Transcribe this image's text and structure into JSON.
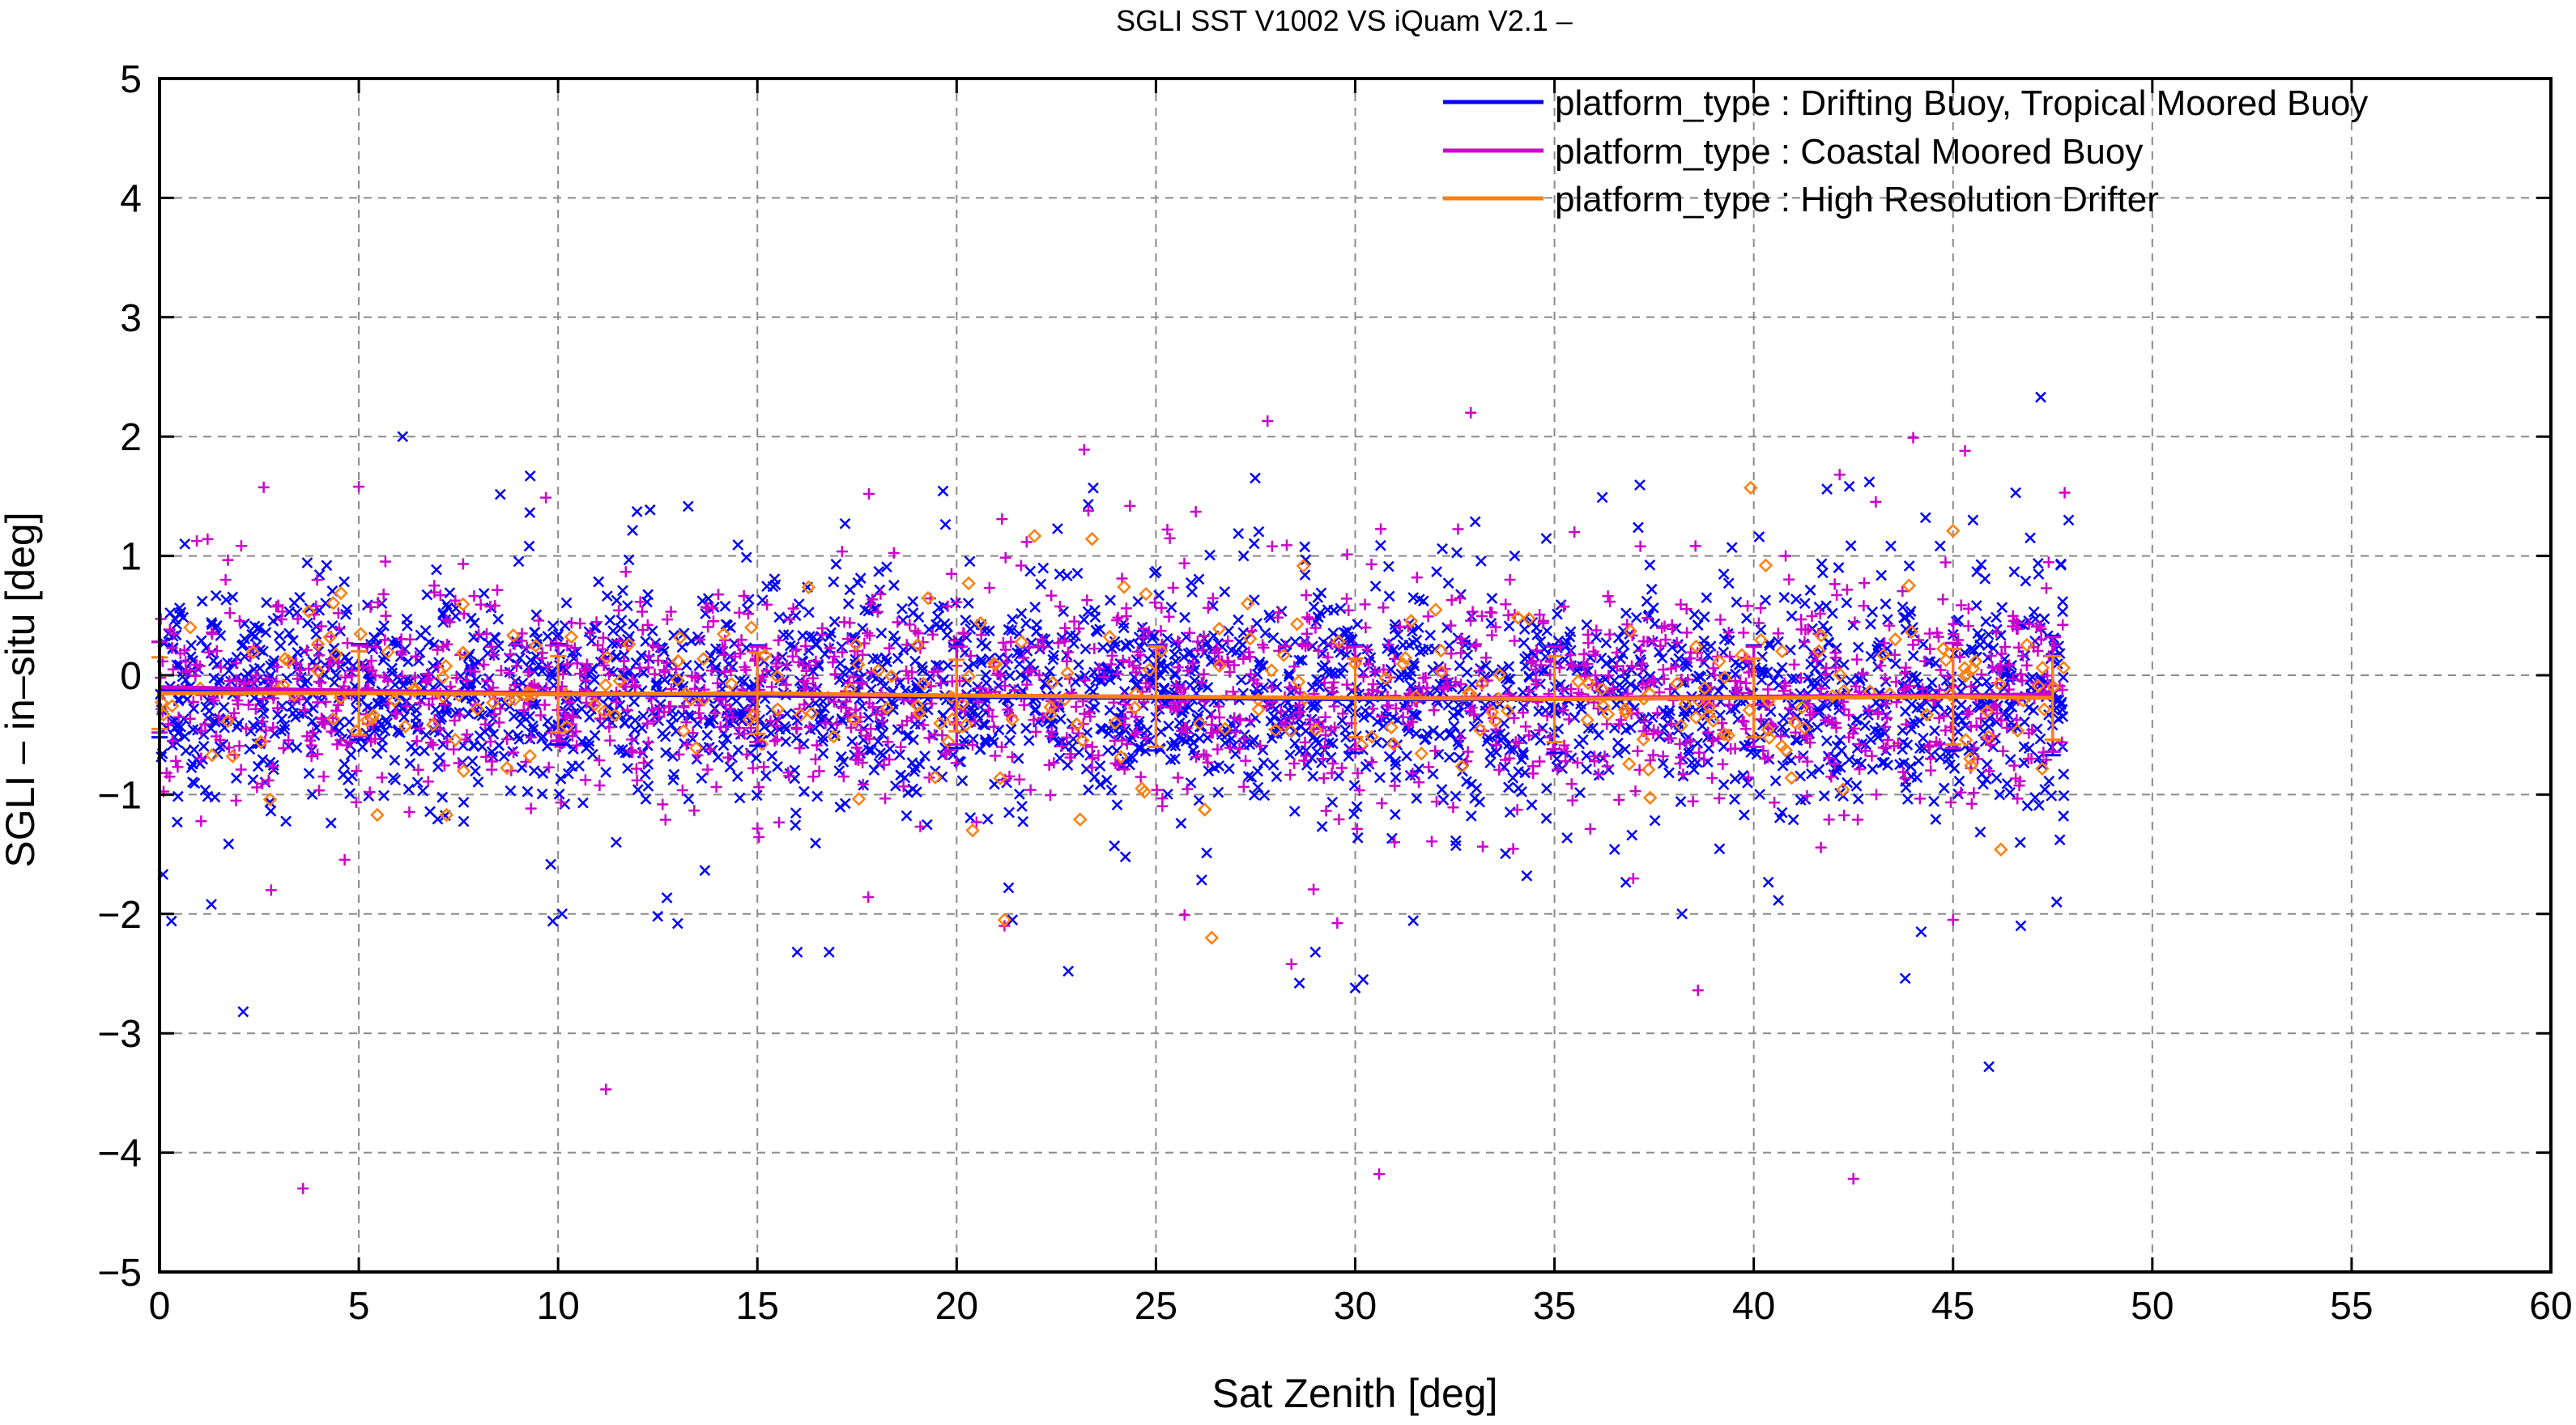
{
  "colors": {
    "drifting": "#0000ff",
    "coastal": "#cc00cc",
    "hrd": "#ff7f0e",
    "grid": "#8a8a8a",
    "axis": "#000000"
  },
  "chart_data": {
    "type": "scatter",
    "title": "SGLI SST V1002 VS iQuam V2.1  –",
    "xlabel": "Sat Zenith [deg]",
    "ylabel": "SGLI – in–situ [deg]",
    "xlim": [
      0,
      60
    ],
    "ylim": [
      -5,
      5
    ],
    "grid": true,
    "legend_position": "top-right",
    "x_ticks": [
      "0",
      "5",
      "10",
      "15",
      "20",
      "25",
      "30",
      "35",
      "40",
      "45",
      "50",
      "55",
      "60"
    ],
    "y_ticks": [
      "5",
      "4",
      "3",
      "2",
      "1",
      "0",
      "−1",
      "−2",
      "−3",
      "−4",
      "−5"
    ],
    "series": [
      {
        "name": "platform_type : Drifting Buoy, Tropical Moored Buoy",
        "marker": "x",
        "bin_centers": [
          0,
          5,
          10,
          15,
          20,
          25,
          30,
          35,
          40,
          45,
          47.5
        ],
        "mean": [
          -0.12,
          -0.14,
          -0.16,
          -0.17,
          -0.18,
          -0.19,
          -0.2,
          -0.2,
          -0.19,
          -0.18,
          -0.17
        ],
        "std": [
          0.4,
          0.4,
          0.42,
          0.42,
          0.43,
          0.44,
          0.45,
          0.45,
          0.44,
          0.45,
          0.5
        ],
        "scatter_range_x": [
          0,
          47.8
        ],
        "outliers": [
          [
            0.3,
            -2.06
          ],
          [
            1.3,
            -1.92
          ],
          [
            2.1,
            -2.82
          ],
          [
            6.1,
            2.0
          ],
          [
            9.3,
            1.67
          ],
          [
            10.1,
            -2.0
          ],
          [
            12.5,
            -2.02
          ],
          [
            13.0,
            -2.08
          ],
          [
            16.0,
            -2.32
          ],
          [
            16.8,
            -2.32
          ],
          [
            17.2,
            1.27
          ],
          [
            21.4,
            -2.05
          ],
          [
            22.8,
            -2.48
          ],
          [
            27.2,
            1.0
          ],
          [
            28.6,
            -2.58
          ],
          [
            29.0,
            -2.32
          ],
          [
            30.0,
            -2.62
          ],
          [
            30.2,
            -2.55
          ],
          [
            42.9,
            1.62
          ],
          [
            43.8,
            -2.54
          ],
          [
            44.2,
            -2.15
          ],
          [
            45.5,
            1.3
          ],
          [
            45.9,
            -3.28
          ],
          [
            46.7,
            -2.1
          ],
          [
            47.2,
            2.33
          ],
          [
            47.6,
            -1.9
          ],
          [
            47.9,
            1.3
          ],
          [
            36.2,
            1.49
          ],
          [
            38.2,
            -2.0
          ],
          [
            34.0,
            1.0
          ]
        ]
      },
      {
        "name": "platform_type : Coastal Moored Buoy",
        "marker": "+",
        "bin_centers": [
          0,
          5,
          10,
          15,
          20,
          25,
          30,
          35,
          40,
          45,
          47.5
        ],
        "mean": [
          -0.1,
          -0.13,
          -0.15,
          -0.16,
          -0.17,
          -0.18,
          -0.19,
          -0.19,
          -0.18,
          -0.17,
          -0.16
        ],
        "std": [
          0.38,
          0.38,
          0.4,
          0.4,
          0.41,
          0.42,
          0.43,
          0.43,
          0.42,
          0.44,
          0.48
        ],
        "scatter_range_x": [
          0,
          47.8
        ],
        "outliers": [
          [
            3.6,
            -4.3
          ],
          [
            11.2,
            -3.47
          ],
          [
            30.6,
            -4.18
          ],
          [
            38.6,
            -2.64
          ],
          [
            42.5,
            -4.22
          ],
          [
            23.2,
            1.89
          ],
          [
            27.8,
            2.13
          ],
          [
            32.9,
            2.2
          ],
          [
            44.0,
            1.99
          ],
          [
            45.3,
            1.88
          ],
          [
            5.0,
            1.58
          ],
          [
            17.8,
            1.52
          ],
          [
            26.0,
            1.37
          ],
          [
            28.4,
            -2.42
          ],
          [
            2.8,
            -1.8
          ],
          [
            40.8,
            1.0
          ],
          [
            47.8,
            1.53
          ],
          [
            45.0,
            -2.05
          ],
          [
            21.2,
            -2.1
          ],
          [
            35.5,
            1.2
          ]
        ]
      },
      {
        "name": "platform_type : High Resolution Drifter",
        "marker": "diamond",
        "bin_centers": [
          0,
          5,
          10,
          15,
          20,
          25,
          30,
          35,
          40,
          45,
          47.5
        ],
        "mean": [
          -0.15,
          -0.15,
          -0.16,
          -0.15,
          -0.17,
          -0.18,
          -0.19,
          -0.2,
          -0.19,
          -0.18,
          -0.19
        ],
        "std": [
          0.3,
          0.35,
          0.32,
          0.34,
          0.3,
          0.42,
          0.33,
          0.36,
          0.33,
          0.4,
          0.35
        ],
        "scatter_range_x": [
          0,
          47.8
        ],
        "outliers": [
          [
            7.2,
            -1.17
          ],
          [
            20.4,
            -1.3
          ],
          [
            21.2,
            -2.05
          ],
          [
            26.4,
            -2.2
          ],
          [
            45.0,
            1.21
          ],
          [
            46.2,
            -1.46
          ],
          [
            40.3,
            0.92
          ],
          [
            20.3,
            0.77
          ],
          [
            24.2,
            0.74
          ],
          [
            27.3,
            0.6
          ]
        ]
      }
    ]
  }
}
